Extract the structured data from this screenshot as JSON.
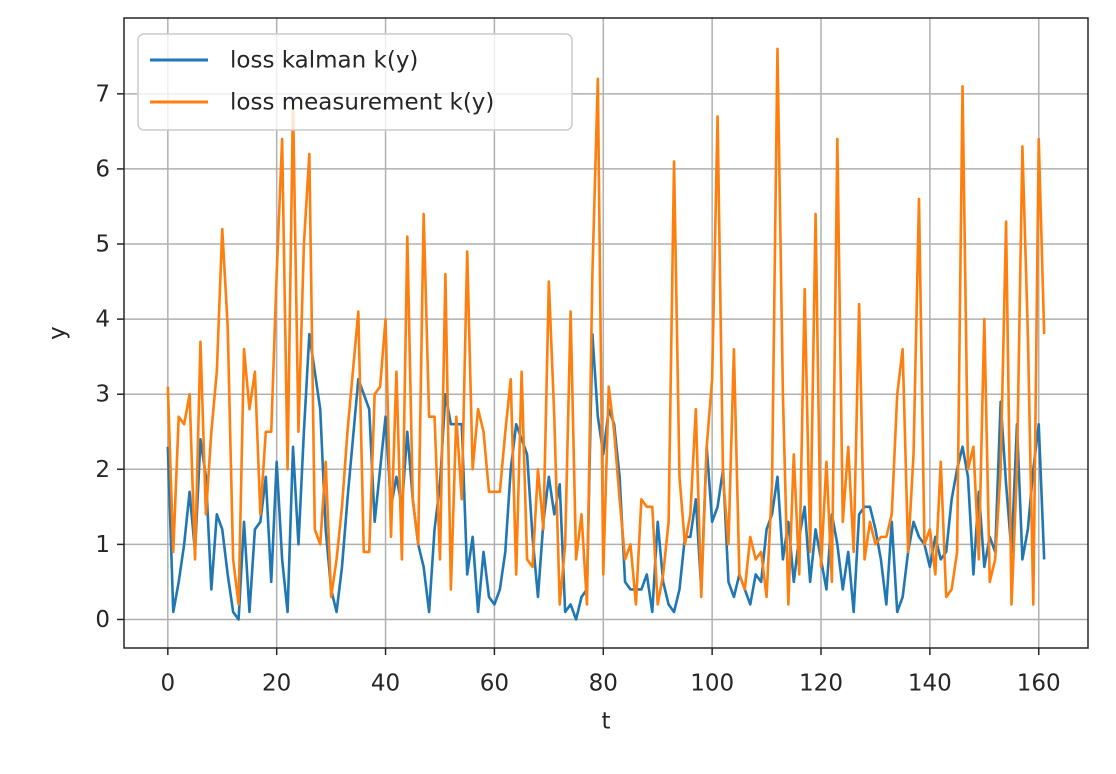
{
  "chart_data": {
    "type": "line",
    "x_label": "t",
    "y_label": "y",
    "x": [
      0,
      1,
      2,
      3,
      4,
      5,
      6,
      7,
      8,
      9,
      10,
      11,
      12,
      13,
      14,
      15,
      16,
      17,
      18,
      19,
      20,
      21,
      22,
      23,
      24,
      25,
      26,
      27,
      28,
      29,
      30,
      31,
      32,
      33,
      34,
      35,
      36,
      37,
      38,
      39,
      40,
      41,
      42,
      43,
      44,
      45,
      46,
      47,
      48,
      49,
      50,
      51,
      52,
      53,
      54,
      55,
      56,
      57,
      58,
      59,
      60,
      61,
      62,
      63,
      64,
      65,
      66,
      67,
      68,
      69,
      70,
      71,
      72,
      73,
      74,
      75,
      76,
      77,
      78,
      79,
      80,
      81,
      82,
      83,
      84,
      85,
      86,
      87,
      88,
      89,
      90,
      91,
      92,
      93,
      94,
      95,
      96,
      97,
      98,
      99,
      100,
      101,
      102,
      103,
      104,
      105,
      106,
      107,
      108,
      109,
      110,
      111,
      112,
      113,
      114,
      115,
      116,
      117,
      118,
      119,
      120,
      121,
      122,
      123,
      124,
      125,
      126,
      127,
      128,
      129,
      130,
      131,
      132,
      133,
      134,
      135,
      136,
      137,
      138,
      139,
      140,
      141,
      142,
      143,
      144,
      145,
      146,
      147,
      148,
      149,
      150,
      151,
      152,
      153,
      154,
      155,
      156,
      157,
      158,
      159,
      160,
      161
    ],
    "series": [
      {
        "name": "loss kalman k(y)",
        "color": "#1f77b4",
        "values": [
          2.3,
          0.1,
          0.5,
          1.0,
          1.7,
          0.9,
          2.4,
          1.9,
          0.4,
          1.4,
          1.2,
          0.6,
          0.1,
          0.0,
          1.3,
          0.1,
          1.2,
          1.3,
          1.9,
          0.5,
          2.1,
          0.8,
          0.1,
          2.3,
          1.0,
          2.5,
          3.8,
          3.3,
          2.8,
          1.2,
          0.4,
          0.1,
          0.7,
          1.6,
          2.4,
          3.2,
          3.0,
          2.8,
          1.3,
          2.0,
          2.7,
          1.5,
          1.9,
          1.5,
          2.5,
          1.6,
          1.0,
          0.7,
          0.1,
          1.2,
          1.8,
          3.0,
          2.6,
          2.6,
          2.6,
          0.6,
          1.1,
          0.1,
          0.9,
          0.3,
          0.2,
          0.4,
          0.9,
          2.0,
          2.6,
          2.4,
          2.2,
          1.1,
          0.3,
          1.3,
          1.9,
          1.4,
          1.8,
          0.1,
          0.2,
          0.0,
          0.3,
          0.4,
          3.8,
          2.7,
          2.2,
          2.8,
          2.6,
          1.9,
          0.5,
          0.4,
          0.4,
          0.4,
          0.6,
          0.1,
          1.3,
          0.5,
          0.2,
          0.1,
          0.4,
          1.1,
          1.1,
          1.6,
          0.4,
          2.3,
          1.3,
          1.5,
          2.0,
          0.5,
          0.3,
          0.6,
          0.4,
          0.2,
          0.6,
          0.5,
          1.2,
          1.4,
          1.9,
          0.8,
          1.3,
          0.5,
          1.1,
          1.5,
          0.5,
          1.2,
          0.8,
          0.4,
          1.4,
          1.0,
          0.4,
          0.9,
          0.1,
          1.4,
          1.5,
          1.5,
          1.2,
          0.8,
          0.2,
          1.3,
          0.1,
          0.3,
          0.9,
          1.3,
          1.1,
          1.0,
          0.7,
          1.1,
          0.8,
          0.9,
          1.6,
          2.0,
          2.3,
          1.9,
          0.6,
          1.7,
          0.7,
          1.1,
          0.9,
          2.9,
          1.8,
          0.9,
          2.6,
          0.8,
          1.2,
          2.0,
          2.6,
          0.8
        ]
      },
      {
        "name": "loss measurement k(y)",
        "color": "#ff7f0e",
        "values": [
          3.1,
          0.9,
          2.7,
          2.6,
          3.0,
          0.8,
          3.7,
          1.4,
          2.5,
          3.3,
          5.2,
          3.9,
          0.8,
          0.2,
          3.6,
          2.8,
          3.3,
          1.4,
          2.5,
          2.5,
          4.6,
          6.4,
          2.0,
          6.9,
          2.5,
          5.0,
          6.2,
          1.2,
          1.0,
          2.1,
          0.3,
          0.8,
          1.5,
          2.5,
          3.3,
          4.1,
          0.9,
          0.9,
          3.0,
          3.1,
          4.0,
          1.1,
          3.3,
          0.8,
          5.1,
          1.6,
          1.0,
          5.4,
          2.7,
          2.7,
          0.8,
          4.6,
          0.4,
          2.7,
          1.6,
          4.9,
          2.0,
          2.8,
          2.5,
          1.7,
          1.7,
          1.7,
          2.5,
          3.2,
          0.6,
          3.3,
          0.8,
          0.7,
          2.0,
          1.2,
          4.5,
          2.7,
          0.2,
          1.0,
          4.1,
          0.8,
          1.4,
          0.2,
          4.6,
          7.2,
          0.6,
          3.1,
          2.5,
          1.6,
          0.8,
          1.0,
          0.2,
          1.6,
          1.5,
          1.5,
          0.2,
          0.6,
          1.3,
          6.1,
          1.9,
          1.0,
          1.4,
          2.8,
          0.3,
          2.3,
          3.2,
          6.7,
          1.9,
          1.0,
          3.6,
          0.6,
          0.4,
          1.1,
          0.8,
          0.9,
          0.3,
          1.8,
          7.6,
          3.0,
          0.2,
          2.2,
          0.6,
          4.4,
          0.9,
          5.4,
          0.7,
          2.1,
          0.5,
          6.4,
          1.3,
          2.3,
          0.9,
          4.2,
          0.8,
          1.3,
          1.0,
          1.1,
          1.1,
          1.4,
          3.0,
          3.6,
          0.9,
          2.2,
          5.6,
          1.0,
          1.2,
          0.6,
          2.1,
          0.3,
          0.4,
          0.9,
          7.1,
          2.0,
          2.3,
          0.8,
          4.0,
          0.5,
          0.8,
          2.0,
          5.3,
          0.2,
          2.0,
          6.3,
          3.8,
          0.2,
          6.4,
          3.8
        ]
      }
    ],
    "xlim": [
      -8.05,
      169.05
    ],
    "ylim": [
      -0.38,
      8.01
    ],
    "xticks": [
      0,
      20,
      40,
      60,
      80,
      100,
      120,
      140,
      160
    ],
    "yticks": [
      0,
      1,
      2,
      3,
      4,
      5,
      6,
      7
    ],
    "grid": true,
    "legend": "upper left"
  }
}
